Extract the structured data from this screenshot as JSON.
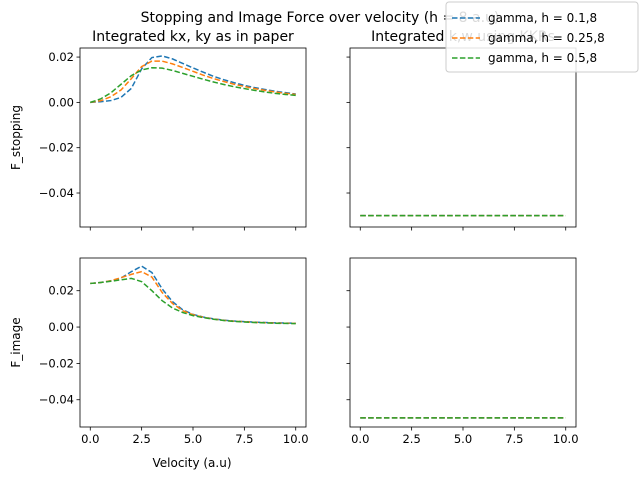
{
  "figure": {
    "suptitle": "Stopping and Image Force over velocity (h = 8 a.u)",
    "xlabel": "Velocity (a.u)"
  },
  "legend": {
    "entries": [
      "gamma, h = 0.1,8",
      "gamma, h = 0.25,8",
      "gamma, h = 0.5,8"
    ],
    "colors": [
      "#1f77b4",
      "#ff7f0e",
      "#2ca02c"
    ]
  },
  "chart_data": [
    {
      "type": "line",
      "title": "Integrated kx, ky as in paper",
      "xlabel": "",
      "ylabel": "F_stopping",
      "xlim": [
        -0.5,
        10.5
      ],
      "ylim": [
        -0.055,
        0.024
      ],
      "xticks": [
        "0.0",
        "2.5",
        "5.0",
        "7.5",
        "10.0"
      ],
      "yticks": [
        "0.02",
        "0.00",
        "−0.02",
        "−0.04"
      ],
      "x": [
        0,
        0.5,
        1.0,
        1.5,
        2.0,
        2.5,
        3.0,
        3.5,
        4.0,
        4.5,
        5.0,
        5.5,
        6.0,
        6.5,
        7.0,
        7.5,
        8.0,
        8.5,
        9.0,
        9.5,
        10.0
      ],
      "series": [
        {
          "name": "gamma, h = 0.1,8",
          "values": [
            0.0,
            0.0003,
            0.0008,
            0.0022,
            0.0062,
            0.0148,
            0.0198,
            0.0205,
            0.0192,
            0.0172,
            0.0152,
            0.0133,
            0.0115,
            0.01,
            0.0087,
            0.0075,
            0.0065,
            0.0057,
            0.0049,
            0.0043,
            0.0037
          ]
        },
        {
          "name": "gamma, h = 0.25,8",
          "values": [
            0.0,
            0.0007,
            0.0025,
            0.0055,
            0.0105,
            0.0158,
            0.0182,
            0.0182,
            0.017,
            0.0154,
            0.0137,
            0.012,
            0.0105,
            0.0092,
            0.008,
            0.007,
            0.0061,
            0.0053,
            0.0046,
            0.004,
            0.0035
          ]
        },
        {
          "name": "gamma, h = 0.5,8",
          "values": [
            0.0,
            0.0015,
            0.0042,
            0.008,
            0.0118,
            0.0143,
            0.0153,
            0.0151,
            0.0141,
            0.0128,
            0.0115,
            0.0102,
            0.009,
            0.0079,
            0.0069,
            0.0061,
            0.0053,
            0.0046,
            0.004,
            0.0035,
            0.0031
          ]
        }
      ]
    },
    {
      "type": "line",
      "title": "Integrated k,w using KKRs",
      "xlabel": "",
      "ylabel": "",
      "xlim": [
        -0.5,
        10.5
      ],
      "ylim": [
        -0.055,
        0.024
      ],
      "xticks": [
        "0.0",
        "2.5",
        "5.0",
        "7.5",
        "10.0"
      ],
      "yticks": [
        "0.02",
        "0.00",
        "−0.02",
        "−0.04"
      ],
      "x": [
        0,
        10
      ],
      "series": [
        {
          "name": "gamma, h = 0.1,8",
          "values": [
            -0.05,
            -0.05
          ]
        },
        {
          "name": "gamma, h = 0.25,8",
          "values": [
            -0.05,
            -0.05
          ]
        },
        {
          "name": "gamma, h = 0.5,8",
          "values": [
            -0.05,
            -0.05
          ]
        }
      ]
    },
    {
      "type": "line",
      "title": "",
      "xlabel": "Velocity (a.u)",
      "ylabel": "F_image",
      "xlim": [
        -0.5,
        10.5
      ],
      "ylim": [
        -0.055,
        0.038
      ],
      "xticks": [
        "0.0",
        "2.5",
        "5.0",
        "7.5",
        "10.0"
      ],
      "yticks": [
        "0.02",
        "0.00",
        "−0.02",
        "−0.04"
      ],
      "x": [
        0,
        0.5,
        1.0,
        1.5,
        2.0,
        2.5,
        3.0,
        3.5,
        4.0,
        4.5,
        5.0,
        5.5,
        6.0,
        6.5,
        7.0,
        7.5,
        8.0,
        8.5,
        9.0,
        9.5,
        10.0
      ],
      "series": [
        {
          "name": "gamma, h = 0.1,8",
          "values": [
            0.024,
            0.0245,
            0.0255,
            0.027,
            0.0305,
            0.0335,
            0.03,
            0.021,
            0.014,
            0.0095,
            0.007,
            0.0055,
            0.0045,
            0.0038,
            0.0033,
            0.003,
            0.0027,
            0.0025,
            0.0023,
            0.0022,
            0.0021
          ]
        },
        {
          "name": "gamma, h = 0.25,8",
          "values": [
            0.024,
            0.0245,
            0.0255,
            0.0272,
            0.029,
            0.0305,
            0.0275,
            0.019,
            0.013,
            0.009,
            0.0068,
            0.0054,
            0.0044,
            0.0037,
            0.0032,
            0.0029,
            0.0026,
            0.0024,
            0.0022,
            0.0021,
            0.002
          ]
        },
        {
          "name": "gamma, h = 0.5,8",
          "values": [
            0.024,
            0.0245,
            0.0252,
            0.026,
            0.0268,
            0.025,
            0.02,
            0.0145,
            0.0105,
            0.008,
            0.0063,
            0.0052,
            0.0043,
            0.0036,
            0.0031,
            0.0028,
            0.0025,
            0.0023,
            0.0021,
            0.002,
            0.0019
          ]
        }
      ]
    },
    {
      "type": "line",
      "title": "",
      "xlabel": "",
      "ylabel": "",
      "xlim": [
        -0.5,
        10.5
      ],
      "ylim": [
        -0.055,
        0.038
      ],
      "xticks": [
        "0.0",
        "2.5",
        "5.0",
        "7.5",
        "10.0"
      ],
      "yticks": [
        "0.02",
        "0.00",
        "−0.02",
        "−0.04"
      ],
      "x": [
        0,
        10
      ],
      "series": [
        {
          "name": "gamma, h = 0.1,8",
          "values": [
            -0.05,
            -0.05
          ]
        },
        {
          "name": "gamma, h = 0.25,8",
          "values": [
            -0.05,
            -0.05
          ]
        },
        {
          "name": "gamma, h = 0.5,8",
          "values": [
            -0.05,
            -0.05
          ]
        }
      ]
    }
  ]
}
